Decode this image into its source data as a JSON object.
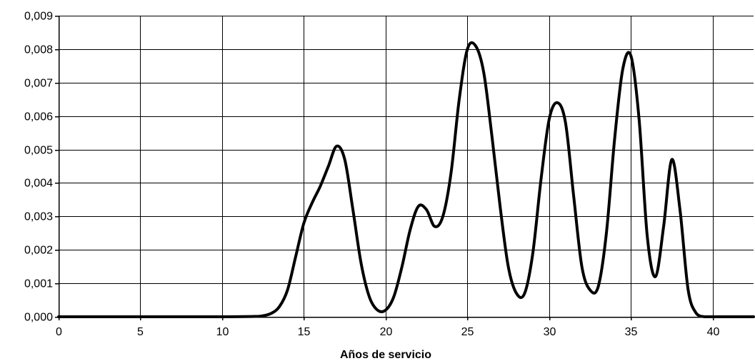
{
  "chart_data": {
    "type": "line",
    "title": "",
    "xlabel": "Años de servicio",
    "ylabel": "",
    "xlim": [
      0,
      42.5
    ],
    "ylim": [
      0,
      0.009
    ],
    "x_ticks": [
      0,
      5,
      10,
      15,
      20,
      25,
      30,
      35,
      40
    ],
    "x_tick_labels": [
      "0",
      "5",
      "10",
      "15",
      "20",
      "25",
      "30",
      "35",
      "40"
    ],
    "y_ticks": [
      0,
      0.001,
      0.002,
      0.003,
      0.004,
      0.005,
      0.006,
      0.007,
      0.008,
      0.009
    ],
    "y_tick_labels": [
      "0,000",
      "0,001",
      "0,002",
      "0,003",
      "0,004",
      "0,005",
      "0,006",
      "0,007",
      "0,008",
      "0,009"
    ],
    "grid": true,
    "legend": "none",
    "series": [
      {
        "color": "#000000",
        "x": [
          0,
          5,
          10,
          12,
          12.5,
          13,
          13.5,
          14,
          14.5,
          15,
          15.5,
          16,
          16.5,
          17,
          17.5,
          18,
          18.5,
          19,
          19.5,
          20,
          20.5,
          21,
          21.5,
          22,
          22.5,
          23,
          23.5,
          24,
          24.5,
          25,
          25.5,
          26,
          26.5,
          27,
          27.5,
          28,
          28.5,
          29,
          29.5,
          30,
          30.5,
          31,
          31.5,
          32,
          32.5,
          33,
          33.5,
          34,
          34.5,
          35,
          35.5,
          36,
          36.5,
          37,
          37.5,
          38,
          38.5,
          39,
          39.5,
          40,
          42.5
        ],
        "y": [
          0,
          0,
          0,
          1e-05,
          3e-05,
          0.0001,
          0.0003,
          0.0008,
          0.0018,
          0.0028,
          0.0034,
          0.0039,
          0.0045,
          0.0051,
          0.0047,
          0.0032,
          0.0016,
          0.0006,
          0.0002,
          0.0002,
          0.0006,
          0.0015,
          0.0026,
          0.0033,
          0.0032,
          0.0027,
          0.003,
          0.0043,
          0.0065,
          0.008,
          0.0081,
          0.0073,
          0.0054,
          0.0033,
          0.0015,
          0.0007,
          0.0007,
          0.0019,
          0.0041,
          0.0059,
          0.0064,
          0.0058,
          0.0036,
          0.0015,
          0.0008,
          0.0009,
          0.0025,
          0.0053,
          0.0074,
          0.0078,
          0.0059,
          0.0024,
          0.0012,
          0.0027,
          0.0047,
          0.0032,
          0.0008,
          0.0001,
          0,
          0,
          0
        ]
      }
    ]
  }
}
